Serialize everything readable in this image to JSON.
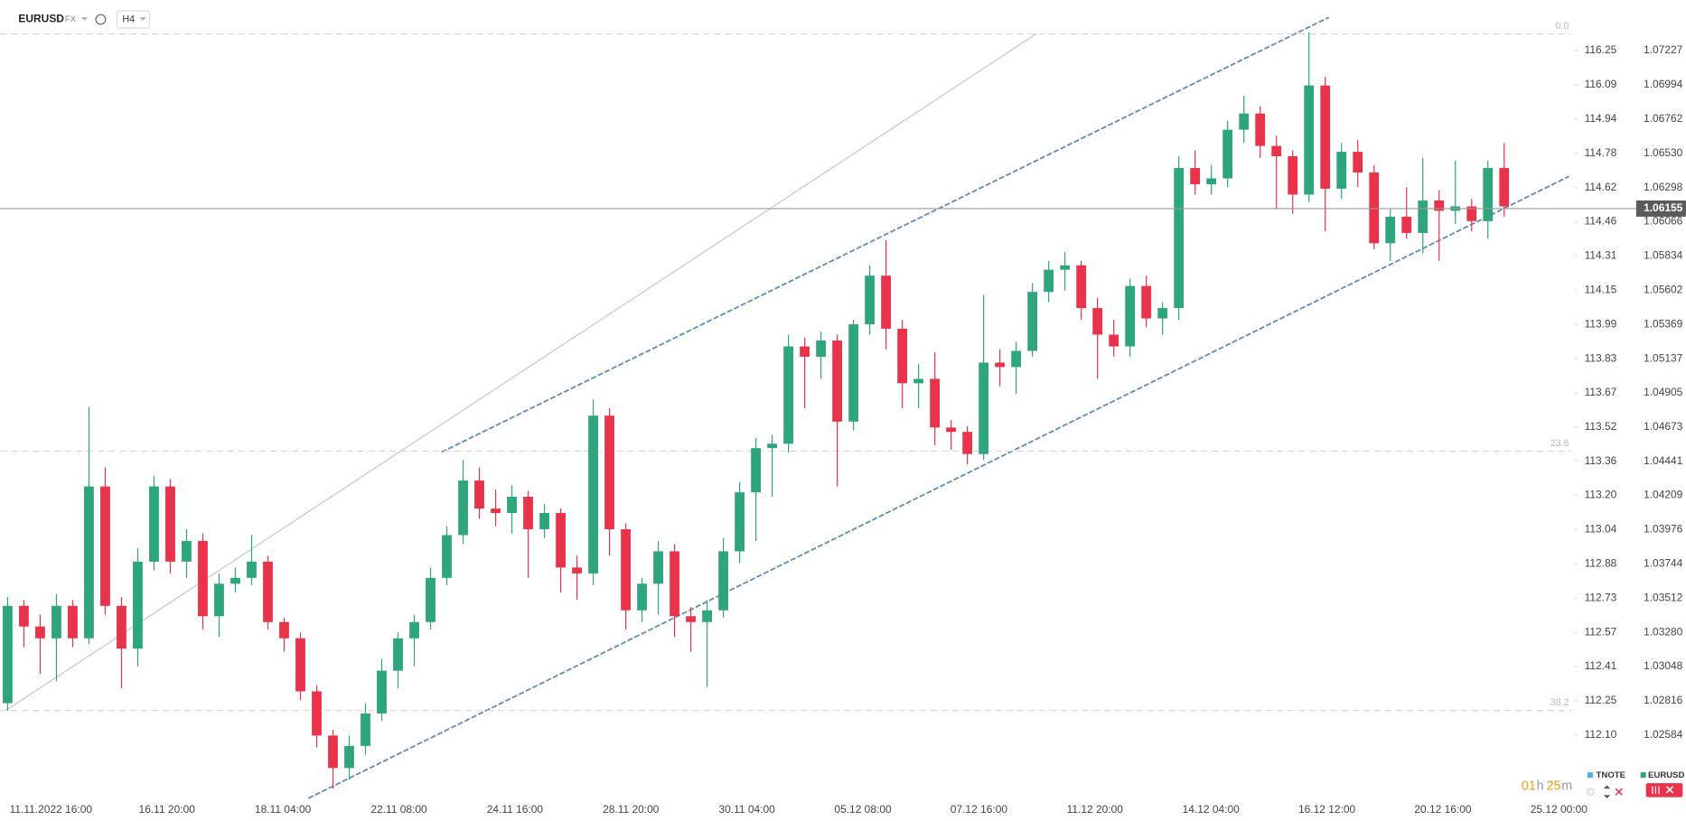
{
  "header": {
    "symbol": "EURUSD",
    "market": "FX",
    "interval": "H4"
  },
  "footer": {
    "countdown_hours": "01",
    "countdown_h": "h",
    "countdown_minutes": "25",
    "countdown_m": "m",
    "legend": [
      "TNOTE",
      "EURUSD"
    ]
  },
  "chart_data": {
    "type": "candlestick",
    "name": "EURUSD",
    "up_color": "#2ea57c",
    "down_color": "#e8334b",
    "ylim": [
      1.0214,
      1.0757
    ],
    "yticks": [
      1.07227,
      1.06994,
      1.06762,
      {
        "value": 1.0653,
        "label": "1.06530"
      },
      1.06298,
      1.06066,
      1.05834,
      1.05602,
      1.05369,
      1.05137,
      1.04905,
      1.04673,
      1.04441,
      1.04209,
      1.03976,
      1.03744,
      1.03512,
      {
        "value": 1.0328,
        "label": "1.03280"
      },
      1.03048,
      1.02816,
      1.02584
    ],
    "y2_labels": [
      "116.25",
      "116.09",
      "114.94",
      "114.78",
      "114.62",
      "114.46",
      "114.31",
      "114.15",
      "113.99",
      "113.83",
      "113.67",
      "113.52",
      "113.36",
      "113.20",
      "113.04",
      "112.88",
      "112.73",
      "112.57",
      "112.41",
      "112.25",
      "112.10"
    ],
    "current_price": 1.06155,
    "fib_levels": [
      {
        "label": "0.0",
        "price": 1.0734
      },
      {
        "label": "23.6",
        "price": 1.0451
      },
      {
        "label": "38.2",
        "price": 1.0275
      }
    ],
    "x_labels": [
      "11.11.2022 16:00",
      "16.11 20:00",
      "18.11 04:00",
      "22.11 08:00",
      "24.11 16:00",
      "28.11 20:00",
      "30.11 04:00",
      "05.12 08:00",
      "07.12 16:00",
      "11.12 20:00",
      "14.12 04:00",
      "16.12 12:00",
      "20.12 16:00",
      "25.12 00:00"
    ],
    "candles": [
      [
        1.028,
        1.0352,
        1.0275,
        1.0346
      ],
      [
        1.0346,
        1.035,
        1.0318,
        1.0332
      ],
      [
        1.0332,
        1.034,
        1.03,
        1.0324
      ],
      [
        1.0324,
        1.0354,
        1.0295,
        1.0346
      ],
      [
        1.0346,
        1.035,
        1.0318,
        1.0324
      ],
      [
        1.0324,
        1.0481,
        1.032,
        1.0427
      ],
      [
        1.0427,
        1.044,
        1.034,
        1.0346
      ],
      [
        1.0346,
        1.0352,
        1.029,
        1.0317
      ],
      [
        1.0317,
        1.0385,
        1.0305,
        1.0376
      ],
      [
        1.0376,
        1.0434,
        1.037,
        1.0427
      ],
      [
        1.0427,
        1.0432,
        1.0368,
        1.0376
      ],
      [
        1.0376,
        1.0398,
        1.0365,
        1.039
      ],
      [
        1.039,
        1.0395,
        1.033,
        1.0339
      ],
      [
        1.0339,
        1.0368,
        1.0325,
        1.0361
      ],
      [
        1.0361,
        1.0372,
        1.0355,
        1.0365
      ],
      [
        1.0365,
        1.0394,
        1.036,
        1.0376
      ],
      [
        1.0376,
        1.038,
        1.033,
        1.0335
      ],
      [
        1.0335,
        1.0338,
        1.0315,
        1.0324
      ],
      [
        1.0324,
        1.0328,
        1.0282,
        1.0288
      ],
      [
        1.0288,
        1.0292,
        1.025,
        1.0258
      ],
      [
        1.0258,
        1.0262,
        1.0222,
        1.0236
      ],
      [
        1.0236,
        1.0258,
        1.0228,
        1.0251
      ],
      [
        1.0251,
        1.028,
        1.0245,
        1.0273
      ],
      [
        1.0273,
        1.031,
        1.0268,
        1.0302
      ],
      [
        1.0302,
        1.0328,
        1.029,
        1.0324
      ],
      [
        1.0324,
        1.034,
        1.0305,
        1.0335
      ],
      [
        1.0335,
        1.0372,
        1.033,
        1.0365
      ],
      [
        1.0365,
        1.04,
        1.036,
        1.0394
      ],
      [
        1.0394,
        1.0445,
        1.0388,
        1.0431
      ],
      [
        1.0431,
        1.044,
        1.0405,
        1.0412
      ],
      [
        1.0412,
        1.0425,
        1.04,
        1.0409
      ],
      [
        1.0409,
        1.0428,
        1.0395,
        1.042
      ],
      [
        1.042,
        1.0424,
        1.0365,
        1.0398
      ],
      [
        1.0398,
        1.0415,
        1.0392,
        1.0409
      ],
      [
        1.0409,
        1.0412,
        1.0355,
        1.0372
      ],
      [
        1.0372,
        1.038,
        1.035,
        1.0368
      ],
      [
        1.0368,
        1.0486,
        1.036,
        1.0475
      ],
      [
        1.0475,
        1.048,
        1.038,
        1.0398
      ],
      [
        1.0398,
        1.0402,
        1.033,
        1.0343
      ],
      [
        1.0343,
        1.0365,
        1.0335,
        1.0361
      ],
      [
        1.0361,
        1.039,
        1.034,
        1.0383
      ],
      [
        1.0383,
        1.0388,
        1.0325,
        1.0339
      ],
      [
        1.0339,
        1.0345,
        1.0315,
        1.0335
      ],
      [
        1.0335,
        1.035,
        1.0291,
        1.0343
      ],
      [
        1.0343,
        1.0392,
        1.0338,
        1.0383
      ],
      [
        1.0383,
        1.043,
        1.0375,
        1.0423
      ],
      [
        1.0423,
        1.046,
        1.039,
        1.0453
      ],
      [
        1.0453,
        1.0462,
        1.042,
        1.0456
      ],
      [
        1.0456,
        1.053,
        1.045,
        1.0522
      ],
      [
        1.0522,
        1.0528,
        1.048,
        1.0515
      ],
      [
        1.0515,
        1.0532,
        1.05,
        1.0526
      ],
      [
        1.0526,
        1.053,
        1.0427,
        1.0471
      ],
      [
        1.0471,
        1.054,
        1.0465,
        1.0537
      ],
      [
        1.0537,
        1.0577,
        1.053,
        1.057
      ],
      [
        1.057,
        1.0594,
        1.052,
        1.0534
      ],
      [
        1.0534,
        1.054,
        1.048,
        1.0497
      ],
      [
        1.0497,
        1.051,
        1.048,
        1.05
      ],
      [
        1.05,
        1.0518,
        1.0455,
        1.0467
      ],
      [
        1.0467,
        1.0472,
        1.0452,
        1.0464
      ],
      [
        1.0464,
        1.0468,
        1.0442,
        1.0449
      ],
      [
        1.0449,
        1.0557,
        1.0445,
        1.0511
      ],
      [
        1.0511,
        1.052,
        1.0495,
        1.0508
      ],
      [
        1.0508,
        1.0525,
        1.049,
        1.0519
      ],
      [
        1.0519,
        1.0565,
        1.0515,
        1.0559
      ],
      [
        1.0559,
        1.058,
        1.0552,
        1.0574
      ],
      [
        1.0574,
        1.0586,
        1.056,
        1.0577
      ],
      [
        1.0577,
        1.058,
        1.054,
        1.0548
      ],
      [
        1.0548,
        1.0555,
        1.05,
        1.053
      ],
      [
        1.053,
        1.054,
        1.0515,
        1.0522
      ],
      [
        1.0522,
        1.0568,
        1.0515,
        1.0563
      ],
      [
        1.0563,
        1.057,
        1.0535,
        1.0541
      ],
      [
        1.0541,
        1.0552,
        1.053,
        1.0548
      ],
      [
        1.0548,
        1.0651,
        1.054,
        1.0643
      ],
      [
        1.0643,
        1.0655,
        1.0625,
        1.0632
      ],
      [
        1.0632,
        1.0645,
        1.0625,
        1.0636
      ],
      [
        1.0636,
        1.0675,
        1.063,
        1.0669
      ],
      [
        1.0669,
        1.0692,
        1.066,
        1.068
      ],
      [
        1.068,
        1.0685,
        1.065,
        1.0658
      ],
      [
        1.0658,
        1.0665,
        1.0615,
        1.0651
      ],
      [
        1.0651,
        1.0655,
        1.0612,
        1.0625
      ],
      [
        1.0625,
        1.0735,
        1.062,
        1.0699
      ],
      [
        1.0699,
        1.0705,
        1.06,
        1.0629
      ],
      [
        1.0629,
        1.066,
        1.0622,
        1.0654
      ],
      [
        1.0654,
        1.0662,
        1.063,
        1.064
      ],
      [
        1.064,
        1.0645,
        1.0588,
        1.0592
      ],
      [
        1.0592,
        1.0615,
        1.058,
        1.061
      ],
      [
        1.061,
        1.063,
        1.0595,
        1.0599
      ],
      [
        1.0599,
        1.065,
        1.0585,
        1.0621
      ],
      [
        1.0621,
        1.0628,
        1.058,
        1.0614
      ],
      [
        1.0614,
        1.0648,
        1.0605,
        1.0617
      ],
      [
        1.0617,
        1.0622,
        1.06,
        1.0607
      ],
      [
        1.0607,
        1.0648,
        1.0595,
        1.0643
      ],
      [
        1.0643,
        1.066,
        1.061,
        1.0617
      ]
    ]
  }
}
